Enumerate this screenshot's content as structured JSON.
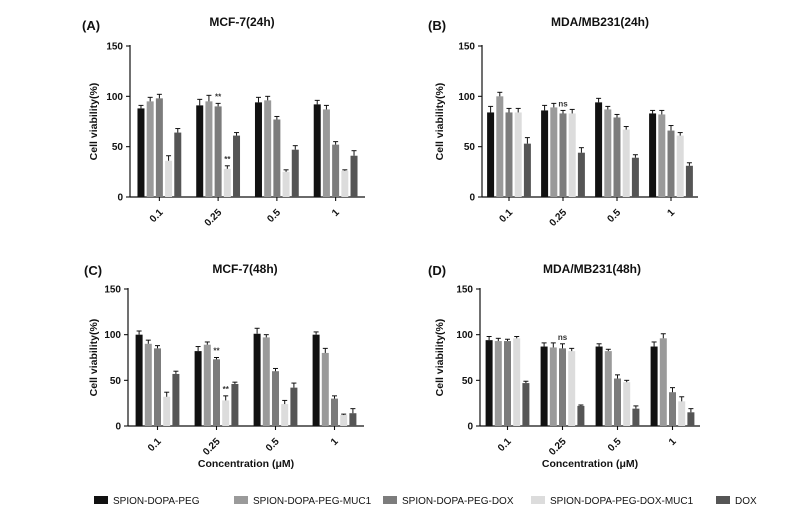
{
  "figure": {
    "legend": [
      {
        "name": "SPION-DOPA-PEG",
        "color": "#111111"
      },
      {
        "name": "SPION-DOPA-PEG-MUC1",
        "color": "#9a9a9a"
      },
      {
        "name": "SPION-DOPA-PEG-DOX",
        "color": "#7c7c7c"
      },
      {
        "name": "SPION-DOPA-PEG-DOX-MUC1",
        "color": "#dcdcdc"
      },
      {
        "name": "DOX",
        "color": "#555555"
      }
    ]
  },
  "chart_data": [
    {
      "type": "bar",
      "panel": "(A)",
      "title": "MCF-7(24h)",
      "xlabel": "",
      "ylabel": "Cell viability(%)",
      "ylim": [
        0,
        150
      ],
      "yticks": [
        0,
        50,
        100,
        150
      ],
      "categories": [
        "0.1",
        "0.25",
        "0.5",
        "1"
      ],
      "series": [
        {
          "name": "SPION-DOPA-PEG",
          "values": [
            88,
            91,
            94,
            92
          ],
          "errors": [
            3,
            6,
            5,
            4
          ]
        },
        {
          "name": "SPION-DOPA-PEG-MUC1",
          "values": [
            95,
            95,
            96,
            87
          ],
          "errors": [
            4,
            6,
            4,
            4
          ]
        },
        {
          "name": "SPION-DOPA-PEG-DOX",
          "values": [
            98,
            90,
            77,
            52
          ],
          "errors": [
            4,
            3,
            3,
            3
          ]
        },
        {
          "name": "SPION-DOPA-PEG-DOX-MUC1",
          "values": [
            36,
            28,
            25,
            26
          ],
          "errors": [
            5,
            3,
            2,
            1
          ]
        },
        {
          "name": "DOX",
          "values": [
            64,
            61,
            47,
            41
          ],
          "errors": [
            4,
            3,
            4,
            5
          ]
        }
      ],
      "annotations": [
        {
          "category": "0.25",
          "series": "SPION-DOPA-PEG-DOX",
          "text": "**"
        },
        {
          "category": "0.25",
          "series": "SPION-DOPA-PEG-DOX-MUC1",
          "text": "**"
        }
      ]
    },
    {
      "type": "bar",
      "panel": "(B)",
      "title": "MDA/MB231(24h)",
      "xlabel": "",
      "ylabel": "Cell viability(%)",
      "ylim": [
        0,
        150
      ],
      "yticks": [
        0,
        50,
        100,
        150
      ],
      "categories": [
        "0.1",
        "0.25",
        "0.5",
        "1"
      ],
      "series": [
        {
          "name": "SPION-DOPA-PEG",
          "values": [
            84,
            86,
            94,
            83
          ],
          "errors": [
            6,
            5,
            4,
            3
          ]
        },
        {
          "name": "SPION-DOPA-PEG-MUC1",
          "values": [
            100,
            89,
            87,
            82
          ],
          "errors": [
            4,
            4,
            3,
            4
          ]
        },
        {
          "name": "SPION-DOPA-PEG-DOX",
          "values": [
            84,
            83,
            79,
            66
          ],
          "errors": [
            4,
            3,
            3,
            5
          ]
        },
        {
          "name": "SPION-DOPA-PEG-DOX-MUC1",
          "values": [
            84,
            83,
            67,
            61
          ],
          "errors": [
            4,
            4,
            3,
            3
          ]
        },
        {
          "name": "DOX",
          "values": [
            53,
            44,
            39,
            31
          ],
          "errors": [
            6,
            5,
            3,
            3
          ]
        }
      ],
      "annotations": [
        {
          "category": "0.25",
          "series": "SPION-DOPA-PEG-DOX",
          "text": "ns"
        }
      ]
    },
    {
      "type": "bar",
      "panel": "(C)",
      "title": "MCF-7(48h)",
      "xlabel": "Concentration (μM)",
      "ylabel": "Cell viability(%)",
      "ylim": [
        0,
        150
      ],
      "yticks": [
        0,
        50,
        100,
        150
      ],
      "categories": [
        "0.1",
        "0.25",
        "0.5",
        "1"
      ],
      "series": [
        {
          "name": "SPION-DOPA-PEG",
          "values": [
            100,
            82,
            101,
            100
          ],
          "errors": [
            4,
            5,
            6,
            3
          ]
        },
        {
          "name": "SPION-DOPA-PEG-MUC1",
          "values": [
            90,
            89,
            97,
            80
          ],
          "errors": [
            4,
            3,
            3,
            5
          ]
        },
        {
          "name": "SPION-DOPA-PEG-DOX",
          "values": [
            85,
            73,
            60,
            30
          ],
          "errors": [
            3,
            2,
            3,
            3
          ]
        },
        {
          "name": "SPION-DOPA-PEG-DOX-MUC1",
          "values": [
            32,
            28,
            24,
            12
          ],
          "errors": [
            5,
            5,
            4,
            1
          ]
        },
        {
          "name": "DOX",
          "values": [
            57,
            46,
            42,
            14
          ],
          "errors": [
            3,
            2,
            5,
            5
          ]
        }
      ],
      "annotations": [
        {
          "category": "0.25",
          "series": "SPION-DOPA-PEG-DOX",
          "text": "**"
        },
        {
          "category": "0.25",
          "series": "SPION-DOPA-PEG-DOX-MUC1",
          "text": "**"
        }
      ]
    },
    {
      "type": "bar",
      "panel": "(D)",
      "title": "MDA/MB231(48h)",
      "xlabel": "Concentration (μM)",
      "ylabel": "Cell viability(%)",
      "ylim": [
        0,
        150
      ],
      "yticks": [
        0,
        50,
        100,
        150
      ],
      "categories": [
        "0.1",
        "0.25",
        "0.5",
        "1"
      ],
      "series": [
        {
          "name": "SPION-DOPA-PEG",
          "values": [
            94,
            87,
            87,
            87
          ],
          "errors": [
            4,
            4,
            3,
            5
          ]
        },
        {
          "name": "SPION-DOPA-PEG-MUC1",
          "values": [
            93,
            86,
            82,
            96
          ],
          "errors": [
            3,
            5,
            2,
            5
          ]
        },
        {
          "name": "SPION-DOPA-PEG-DOX",
          "values": [
            93,
            85,
            52,
            37
          ],
          "errors": [
            2,
            5,
            4,
            5
          ]
        },
        {
          "name": "SPION-DOPA-PEG-DOX-MUC1",
          "values": [
            96,
            82,
            48,
            27
          ],
          "errors": [
            2,
            3,
            2,
            5
          ]
        },
        {
          "name": "DOX",
          "values": [
            47,
            22,
            19,
            15
          ],
          "errors": [
            2,
            1,
            3,
            4
          ]
        }
      ],
      "annotations": [
        {
          "category": "0.25",
          "series": "SPION-DOPA-PEG-DOX",
          "text": "ns"
        }
      ]
    }
  ]
}
